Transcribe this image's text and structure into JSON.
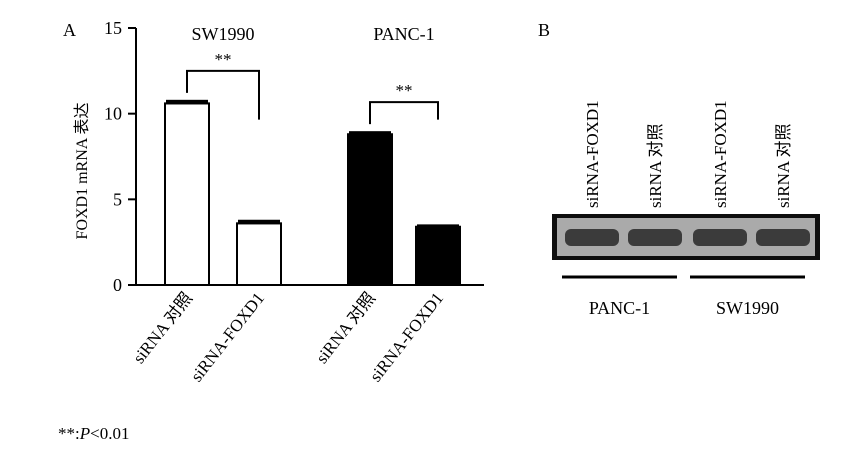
{
  "chart_data": [
    {
      "type": "bar",
      "panel_label": "A",
      "ylabel": "FOXD1 mRNA 表达",
      "ylim": [
        0,
        15
      ],
      "yticks": [
        0,
        5,
        10,
        15
      ],
      "groups": [
        {
          "name": "SW1990",
          "significance": "**",
          "bar_color": "#ffffff",
          "bars": [
            {
              "label": "siRNA 对照",
              "value": 10.6,
              "error": 0.15
            },
            {
              "label": "siRNA-FOXD1",
              "value": 3.6,
              "error": 0.15
            }
          ]
        },
        {
          "name": "PANC-1",
          "significance": "**",
          "bar_color": "#000000",
          "bars": [
            {
              "label": "siRNA 对照",
              "value": 8.8,
              "error": 0.12
            },
            {
              "label": "siRNA-FOXD1",
              "value": 3.4,
              "error": 0.08
            }
          ]
        }
      ]
    },
    {
      "type": "gel",
      "panel_label": "B",
      "lanes": [
        "siRNA-FOXD1",
        "siRNA 对照",
        "siRNA-FOXD1",
        "siRNA 对照"
      ],
      "lane_groups": [
        {
          "name": "PANC-1",
          "lanes": [
            0,
            1
          ]
        },
        {
          "name": "SW1990",
          "lanes": [
            2,
            3
          ]
        }
      ],
      "grid": false
    }
  ],
  "footnote": {
    "stars": "**",
    "sep": ":",
    "p": "P",
    "rest": "<0.01"
  }
}
